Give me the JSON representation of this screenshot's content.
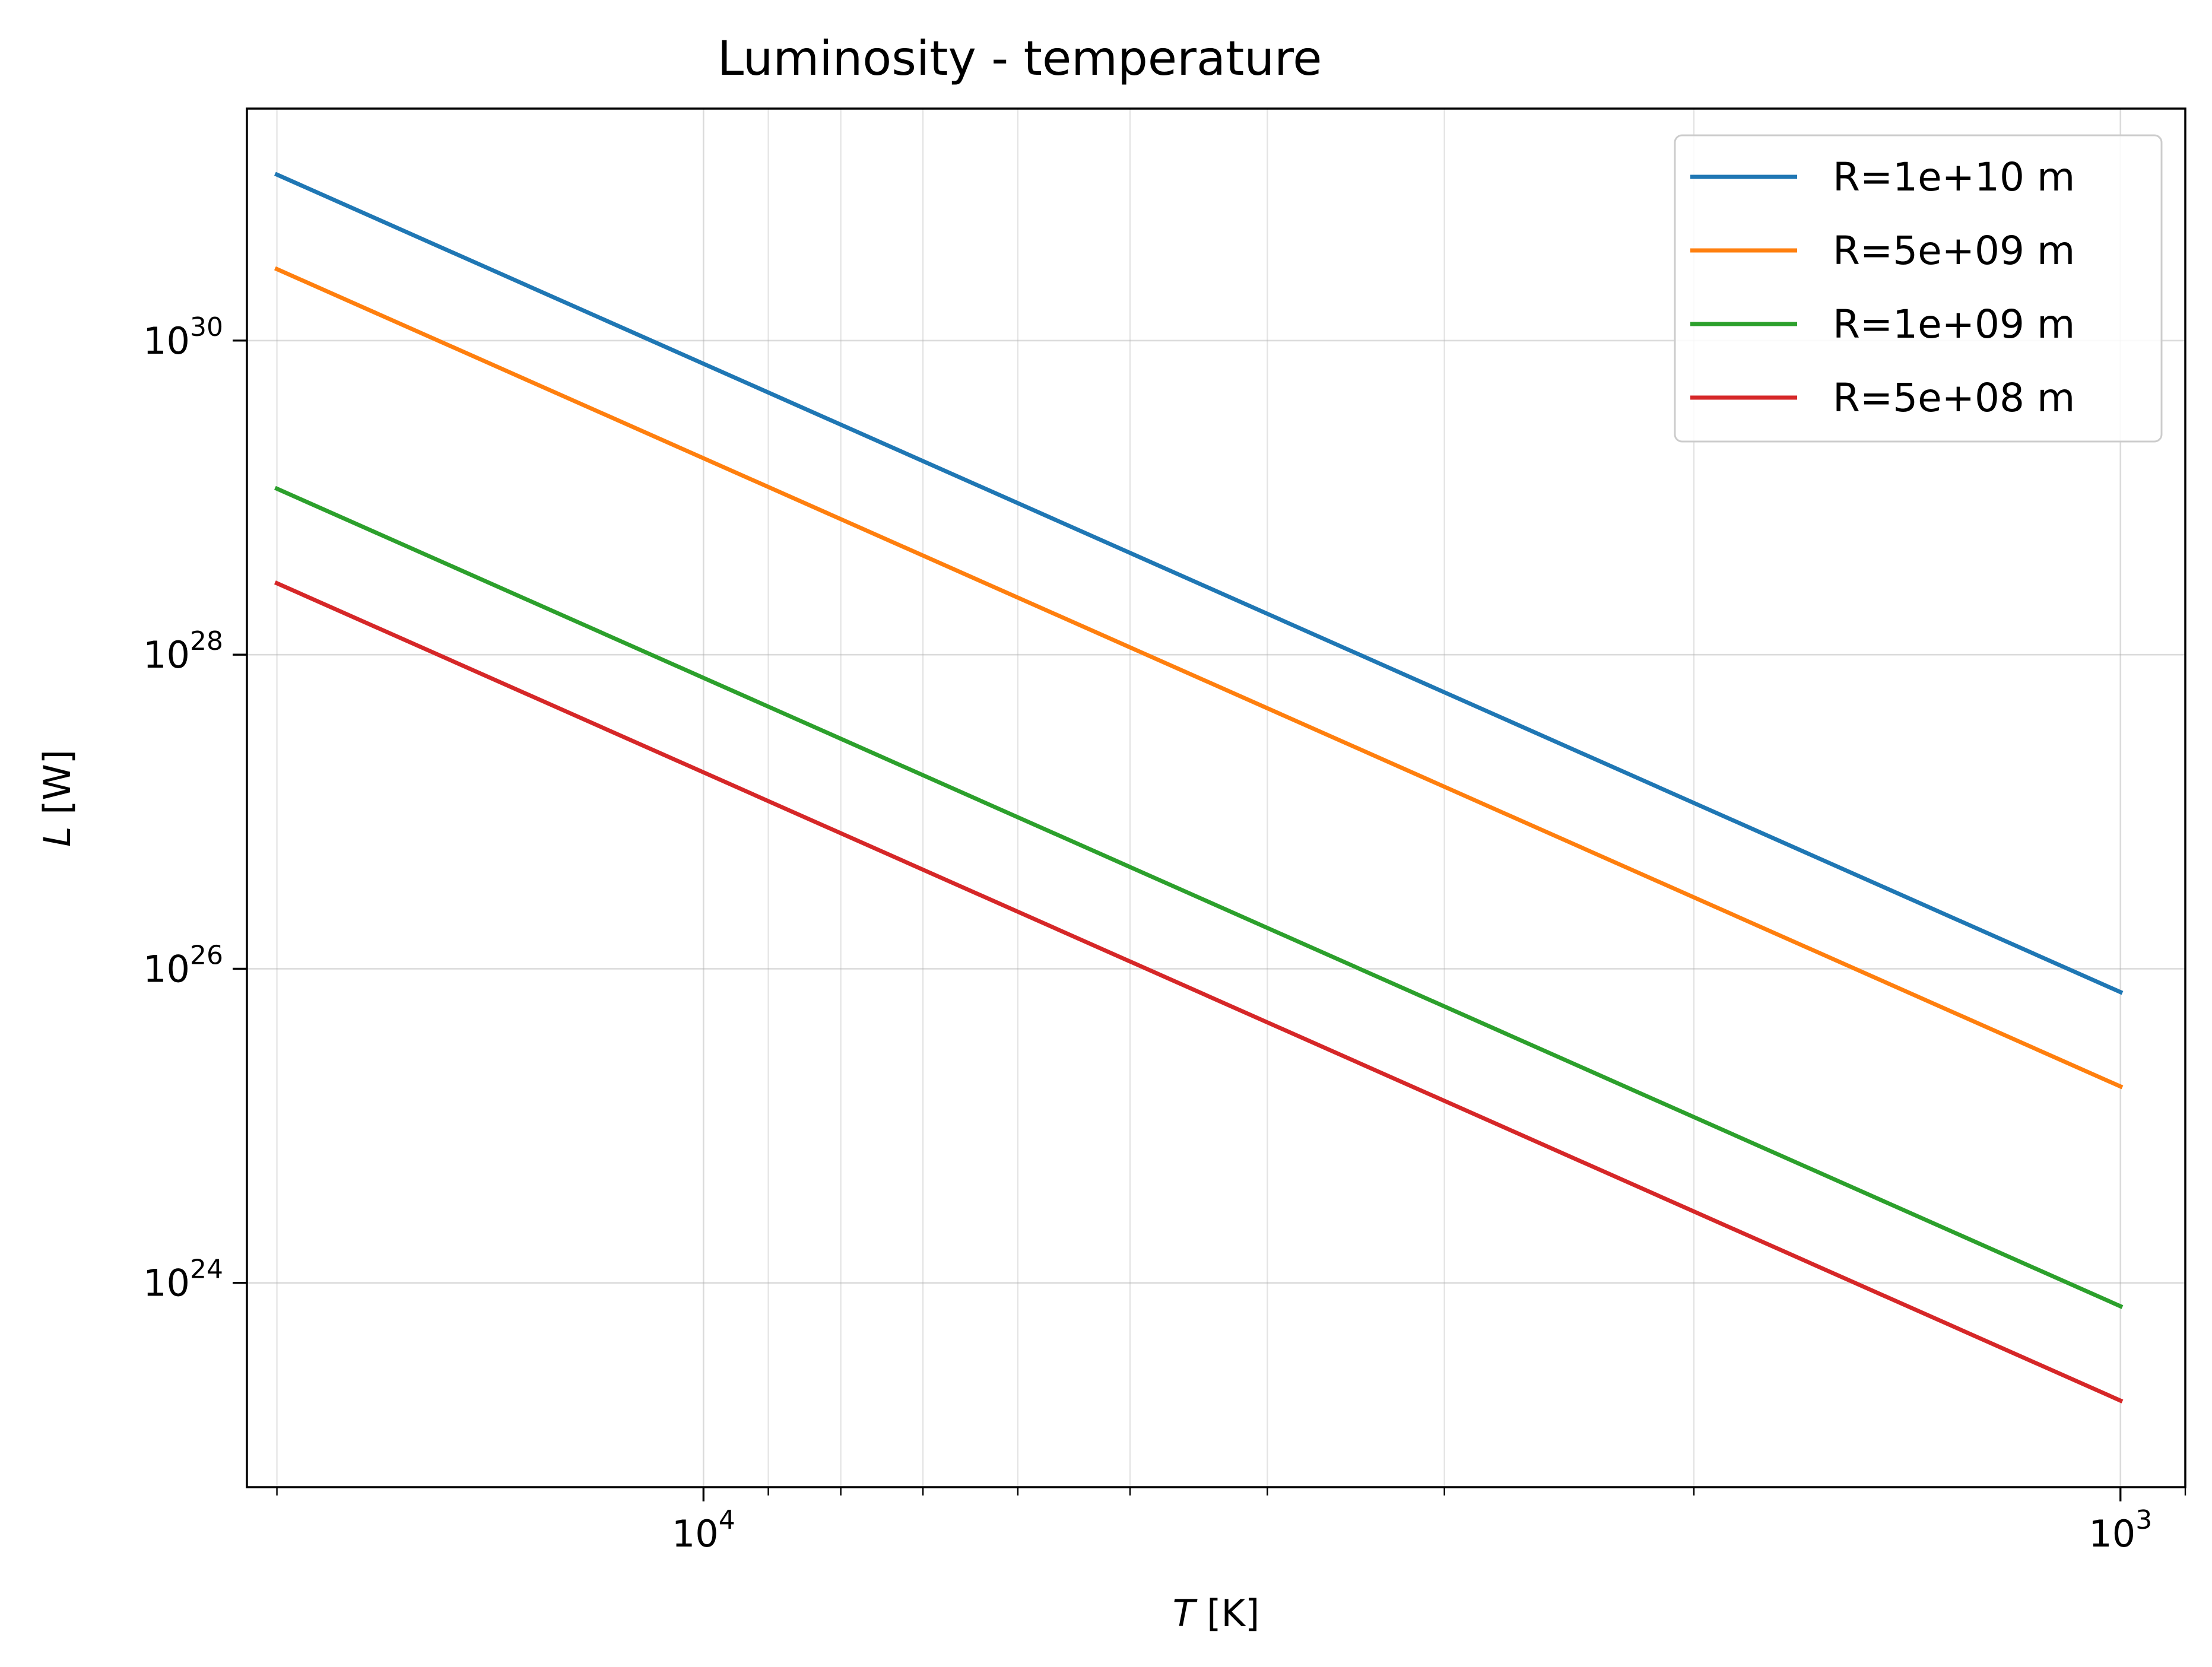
{
  "chart_data": {
    "type": "line",
    "title": "Luminosity - temperature",
    "xlabel_var": "T",
    "xlabel_unit": " [K]",
    "ylabel_var": "L",
    "ylabel_unit": " [W]",
    "x_scale": "log",
    "y_scale": "log",
    "x_inverted": true,
    "xlim": [
      21000,
      900
    ],
    "ylim": [
      5e+22,
      3e+31
    ],
    "x_major_ticks": [
      {
        "value": 10000,
        "base": "10",
        "exp": "4"
      },
      {
        "value": 1000,
        "base": "10",
        "exp": "3"
      }
    ],
    "x_minor_ticks": [
      20000,
      9000,
      8000,
      7000,
      6000,
      5000,
      4000,
      3000,
      2000,
      900
    ],
    "y_major_ticks": [
      {
        "value": 1e+24,
        "base": "10",
        "exp": "24"
      },
      {
        "value": 1e+26,
        "base": "10",
        "exp": "26"
      },
      {
        "value": 1e+28,
        "base": "10",
        "exp": "28"
      },
      {
        "value": 1e+30,
        "base": "10",
        "exp": "30"
      }
    ],
    "grid": true,
    "legend_position": "top-right",
    "x": [
      20000,
      1000
    ],
    "series": [
      {
        "name": "R=1e+10 m",
        "color": "#1f77b4",
        "values": [
          1.14e+31,
          7.1e+25
        ]
      },
      {
        "name": "R=5e+09 m",
        "color": "#ff7f0e",
        "values": [
          2.85e+30,
          1.78e+25
        ]
      },
      {
        "name": "R=1e+09 m",
        "color": "#2ca02c",
        "values": [
          1.14e+29,
          7.1e+23
        ]
      },
      {
        "name": "R=5e+08 m",
        "color": "#d62728",
        "values": [
          2.85e+28,
          1.78e+23
        ]
      }
    ]
  }
}
